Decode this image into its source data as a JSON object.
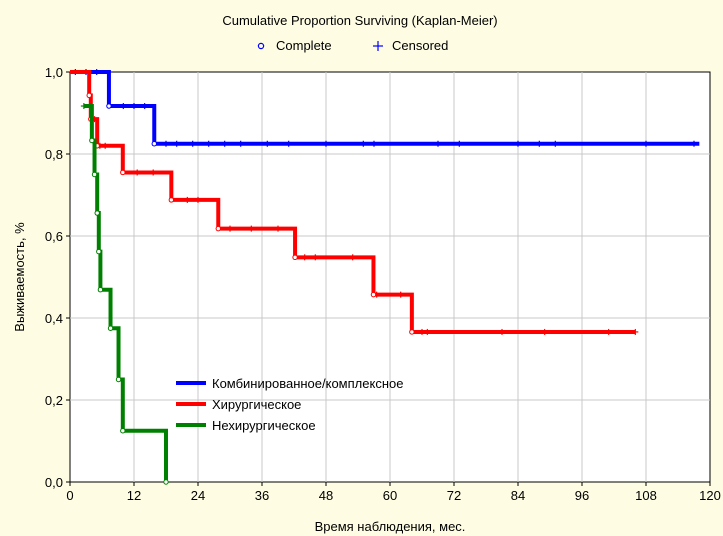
{
  "chart_data": {
    "type": "line",
    "title": "Cumulative Proportion Surviving (Kaplan-Meier)",
    "xlabel": "Время наблюдения, мес.",
    "ylabel": "Выживаемость, %",
    "xlim": [
      0,
      120
    ],
    "ylim": [
      0,
      1
    ],
    "x_ticks": [
      "0",
      "12",
      "24",
      "36",
      "48",
      "60",
      "72",
      "84",
      "96",
      "108",
      "120"
    ],
    "y_ticks": [
      "0,0",
      "0,2",
      "0,4",
      "0,6",
      "0,8",
      "1,0"
    ],
    "grid": true,
    "marker_legend": [
      {
        "symbol": "o",
        "label": "Complete"
      },
      {
        "symbol": "+",
        "label": "Censored"
      }
    ],
    "legend_position": "lower-left",
    "series": [
      {
        "name": "Комбинированное/комплексное",
        "color": "#0000ff",
        "steps": [
          [
            0,
            1.0
          ],
          [
            7.3,
            0.917
          ],
          [
            15.8,
            0.825
          ],
          [
            118,
            0.825
          ]
        ],
        "events": [
          7.3,
          15.8
        ],
        "censored": [
          1,
          3,
          5,
          10,
          12,
          14,
          18,
          20,
          23,
          26,
          29,
          32,
          37,
          41,
          48,
          55,
          57,
          69,
          73,
          84,
          88,
          91,
          108,
          117
        ]
      },
      {
        "name": "Хирургическое",
        "color": "#ff0000",
        "steps": [
          [
            0,
            1.0
          ],
          [
            3.6,
            0.943
          ],
          [
            3.9,
            0.885
          ],
          [
            5.1,
            0.82
          ],
          [
            9.9,
            0.755
          ],
          [
            19,
            0.688
          ],
          [
            27.8,
            0.618
          ],
          [
            42.2,
            0.548
          ],
          [
            56.9,
            0.457
          ],
          [
            64.1,
            0.366
          ],
          [
            106,
            0.366
          ]
        ],
        "events": [
          3.6,
          3.9,
          5.1,
          9.9,
          19,
          27.8,
          42.2,
          56.9,
          64.1
        ],
        "censored": [
          4.6,
          5.6,
          6.6,
          12.6,
          15.6,
          22,
          24,
          30,
          34,
          39,
          44,
          46,
          53,
          57.5,
          62,
          66,
          67,
          81,
          89,
          101,
          106
        ]
      },
      {
        "name": "Нехирургическое",
        "color": "#008000",
        "steps": [
          [
            2.6,
            0.917
          ],
          [
            4.1,
            0.833
          ],
          [
            4.6,
            0.75
          ],
          [
            5.1,
            0.656
          ],
          [
            5.4,
            0.562
          ],
          [
            5.7,
            0.469
          ],
          [
            7.6,
            0.375
          ],
          [
            9.1,
            0.25
          ],
          [
            9.9,
            0.125
          ],
          [
            18,
            0.0
          ]
        ],
        "events": [
          4.1,
          4.6,
          5.1,
          5.4,
          5.7,
          7.6,
          9.1,
          9.9,
          18
        ],
        "censored": [
          2.6,
          4.3
        ]
      }
    ]
  }
}
